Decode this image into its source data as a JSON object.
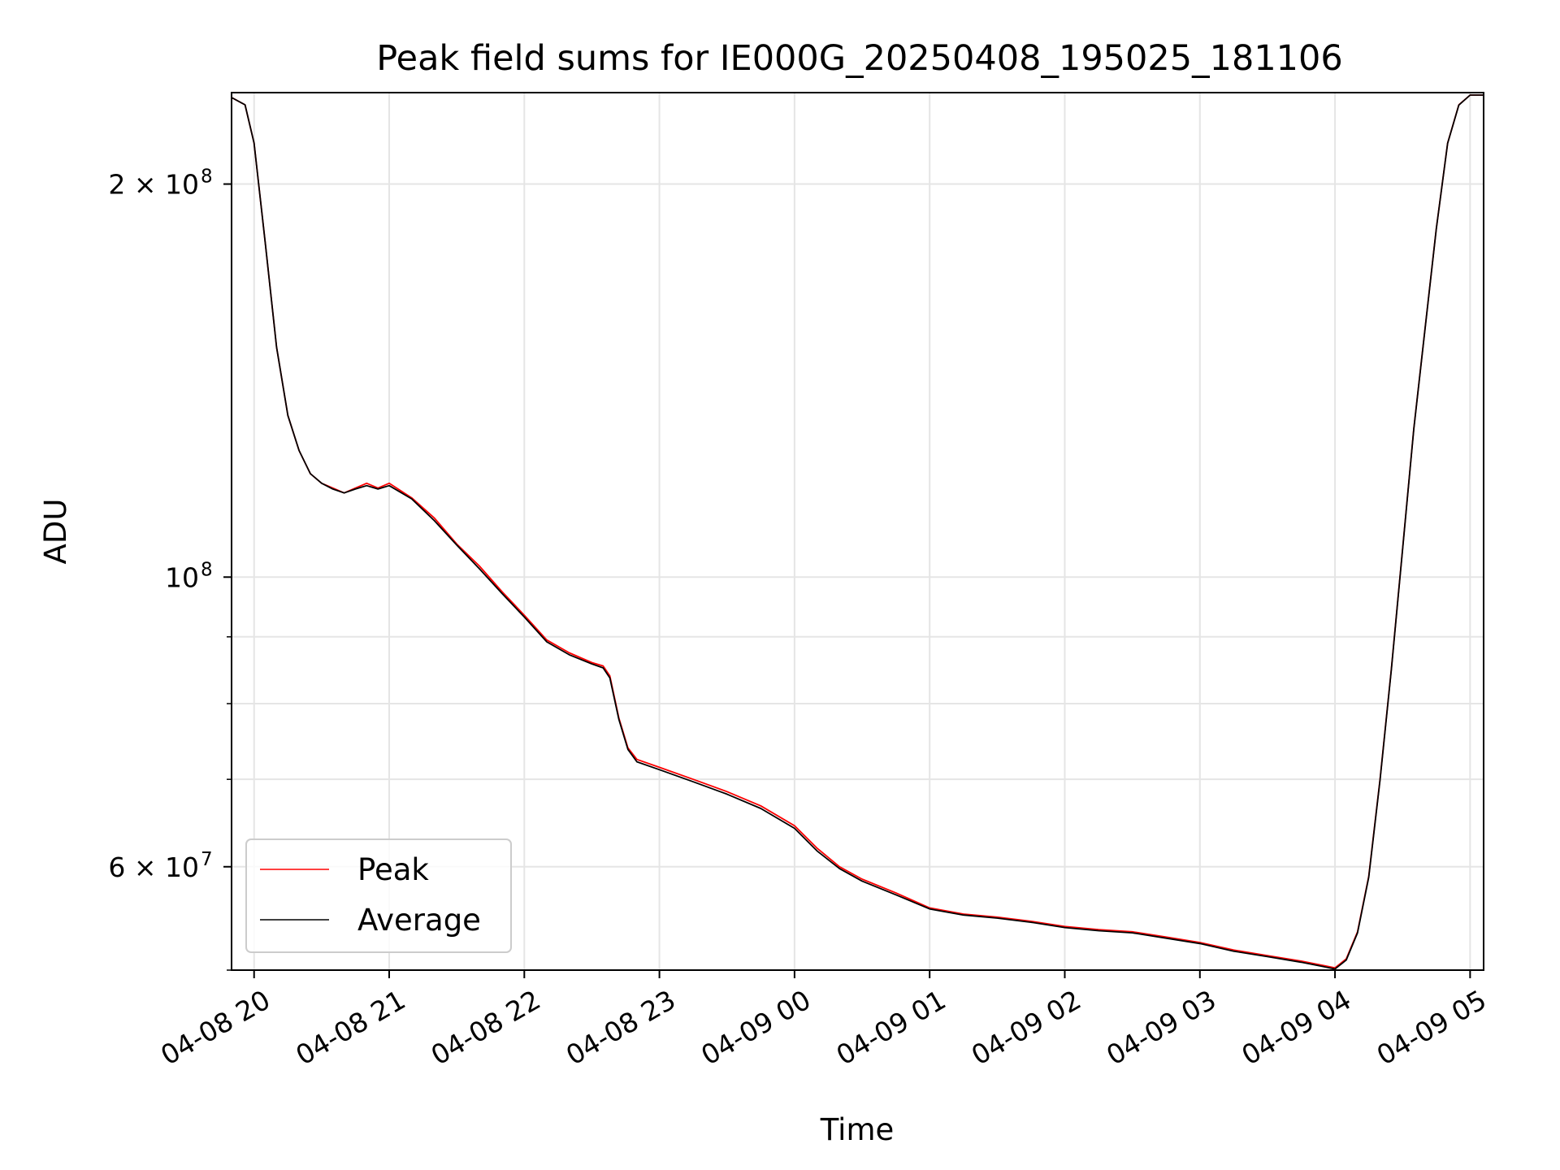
{
  "chart_data": {
    "type": "line",
    "title": "Peak field sums for IE000G_20250408_195025_181106",
    "xlabel": "Time",
    "ylabel": "ADU",
    "yscale": "log",
    "ylim": [
      50000000,
      235000000
    ],
    "xlim": [
      "2025-04-08 19:50",
      "2025-04-09 05:06"
    ],
    "grid": true,
    "legend_position": "lower-left",
    "x_ticks": [
      "04-08 20",
      "04-08 21",
      "04-08 22",
      "04-08 23",
      "04-09 00",
      "04-09 01",
      "04-09 02",
      "04-09 03",
      "04-09 04",
      "04-09 05"
    ],
    "y_ticks": [
      {
        "value": 200000000,
        "base": "2 × 10",
        "exp": "8"
      },
      {
        "value": 100000000,
        "base": "10",
        "exp": "8"
      },
      {
        "value": 60000000,
        "base": "6 × 10",
        "exp": "7"
      }
    ],
    "x": [
      "2025-04-08 19:50",
      "2025-04-08 19:56",
      "2025-04-08 20:00",
      "2025-04-08 20:05",
      "2025-04-08 20:10",
      "2025-04-08 20:15",
      "2025-04-08 20:20",
      "2025-04-08 20:25",
      "2025-04-08 20:30",
      "2025-04-08 20:35",
      "2025-04-08 20:40",
      "2025-04-08 20:45",
      "2025-04-08 20:50",
      "2025-04-08 20:55",
      "2025-04-08 21:00",
      "2025-04-08 21:10",
      "2025-04-08 21:20",
      "2025-04-08 21:30",
      "2025-04-08 21:40",
      "2025-04-08 21:50",
      "2025-04-08 22:00",
      "2025-04-08 22:10",
      "2025-04-08 22:20",
      "2025-04-08 22:30",
      "2025-04-08 22:35",
      "2025-04-08 22:38",
      "2025-04-08 22:42",
      "2025-04-08 22:46",
      "2025-04-08 22:50",
      "2025-04-08 23:00",
      "2025-04-08 23:15",
      "2025-04-08 23:30",
      "2025-04-08 23:45",
      "2025-04-09 00:00",
      "2025-04-09 00:10",
      "2025-04-09 00:20",
      "2025-04-09 00:30",
      "2025-04-09 00:45",
      "2025-04-09 01:00",
      "2025-04-09 01:15",
      "2025-04-09 01:30",
      "2025-04-09 01:45",
      "2025-04-09 02:00",
      "2025-04-09 02:15",
      "2025-04-09 02:30",
      "2025-04-09 02:45",
      "2025-04-09 03:00",
      "2025-04-09 03:15",
      "2025-04-09 03:30",
      "2025-04-09 03:45",
      "2025-04-09 03:55",
      "2025-04-09 04:00",
      "2025-04-09 04:05",
      "2025-04-09 04:10",
      "2025-04-09 04:15",
      "2025-04-09 04:20",
      "2025-04-09 04:25",
      "2025-04-09 04:30",
      "2025-04-09 04:35",
      "2025-04-09 04:40",
      "2025-04-09 04:45",
      "2025-04-09 04:50",
      "2025-04-09 04:55",
      "2025-04-09 05:00",
      "2025-04-09 05:06"
    ],
    "series": [
      {
        "name": "Peak",
        "color": "#ff0000",
        "values": [
          233000000,
          230000000,
          215000000,
          180000000,
          150000000,
          133000000,
          125000000,
          120000000,
          118000000,
          117000000,
          116000000,
          117000000,
          118000000,
          117000000,
          118000000,
          115000000,
          111000000,
          106000000,
          102000000,
          97500000,
          93500000,
          89500000,
          87500000,
          86000000,
          85500000,
          84000000,
          78000000,
          74000000,
          72500000,
          71500000,
          70000000,
          68500000,
          66800000,
          64500000,
          62000000,
          60000000,
          58700000,
          57300000,
          55800000,
          55200000,
          54900000,
          54500000,
          54000000,
          53700000,
          53500000,
          53000000,
          52500000,
          51800000,
          51300000,
          50800000,
          50400000,
          50200000,
          51000000,
          53500000,
          59000000,
          70000000,
          85000000,
          105000000,
          130000000,
          155000000,
          185000000,
          215000000,
          230000000,
          234000000,
          234000000
        ]
      },
      {
        "name": "Average",
        "color": "#000000",
        "values": [
          233000000,
          230000000,
          215000000,
          180000000,
          150000000,
          133000000,
          125000000,
          120000000,
          118000000,
          116800000,
          116000000,
          116800000,
          117500000,
          116800000,
          117500000,
          114800000,
          110500000,
          105800000,
          101500000,
          97200000,
          93200000,
          89200000,
          87200000,
          85800000,
          85200000,
          83700000,
          77800000,
          73800000,
          72200000,
          71200000,
          69700000,
          68200000,
          66500000,
          64200000,
          61700000,
          59800000,
          58500000,
          57100000,
          55700000,
          55100000,
          54800000,
          54400000,
          53900000,
          53600000,
          53400000,
          52900000,
          52400000,
          51700000,
          51200000,
          50700000,
          50300000,
          50100000,
          50900000,
          53400000,
          58900000,
          69900000,
          84900000,
          104900000,
          129900000,
          154900000,
          184900000,
          214900000,
          229900000,
          234000000,
          234000000
        ]
      }
    ]
  }
}
